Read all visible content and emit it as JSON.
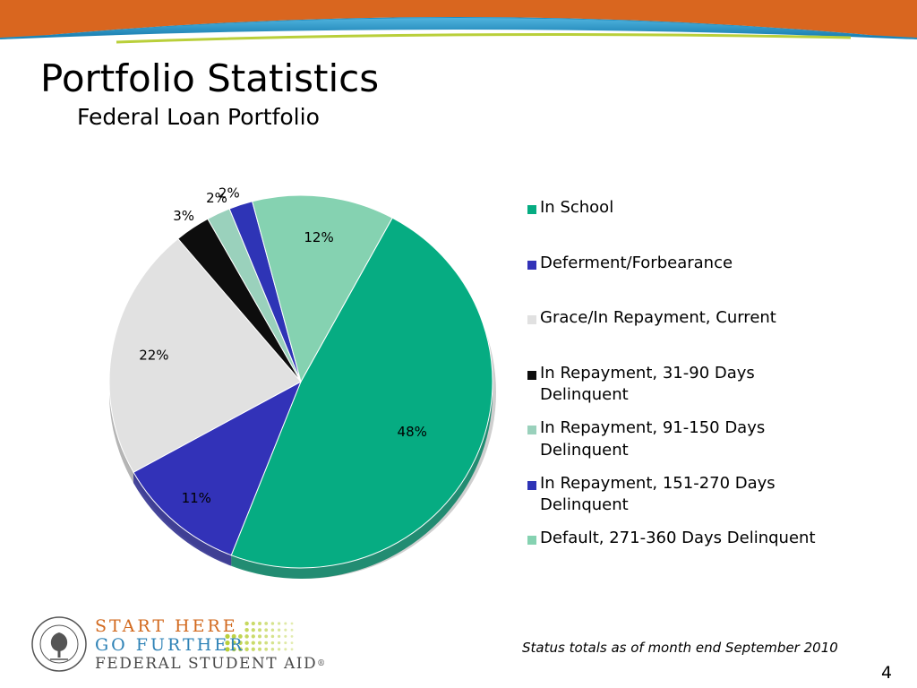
{
  "slide": {
    "title": "Portfolio Statistics",
    "subtitle": "Federal Loan Portfolio",
    "footnote": "Status totals as of month end September 2010",
    "page_number": "4",
    "banner_colors": {
      "orange": "#d9661f",
      "blue": "#1f8ec2",
      "green": "#b9cf3a"
    }
  },
  "logo": {
    "seal_icon": "department-of-education-seal-icon",
    "line1": "START HERE",
    "line2": "GO FURTHER",
    "line3": "FEDERAL STUDENT AID",
    "registered": "®",
    "colors": {
      "line1": "#d2691e",
      "line2": "#2e82b6",
      "line3": "#4a4a4a",
      "dots": "#b9cf3a"
    }
  },
  "chart_data": {
    "type": "pie",
    "categories": [
      "In School",
      "Deferment/Forbearance",
      "Grace/In Repayment, Current",
      "In Repayment, 31-90 Days Delinquent",
      "In Repayment, 91-150 Days Delinquent",
      "In Repayment, 151-270 Days Delinquent",
      "Default, 271-360 Days Delinquent"
    ],
    "values": [
      48,
      11,
      22,
      3,
      2,
      2,
      12
    ],
    "value_labels": [
      "48%",
      "11%",
      "22%",
      "3%",
      "2%",
      "2%",
      "12%"
    ],
    "colors": [
      "#06ac82",
      "#3232b8",
      "#e1e1e1",
      "#0d0d0d",
      "#9ad1bc",
      "#2e34b6",
      "#85d2b1"
    ],
    "legend": [
      "In School",
      "Deferment/Forbearance",
      "Grace/In Repayment, Current",
      "In Repayment, 31-90 Days Delinquent",
      "In Repayment, 91-150 Days Delinquent",
      "In Repayment, 151-270 Days Delinquent",
      "Default, 271-360 Days Delinquent"
    ],
    "legend_colors": [
      "#06ac82",
      "#3232b8",
      "#e1e1e1",
      "#0d0d0d",
      "#9ad1bc",
      "#2e34b6",
      "#85d2b1"
    ],
    "legend_position": "right",
    "style": "3d-tilted"
  }
}
